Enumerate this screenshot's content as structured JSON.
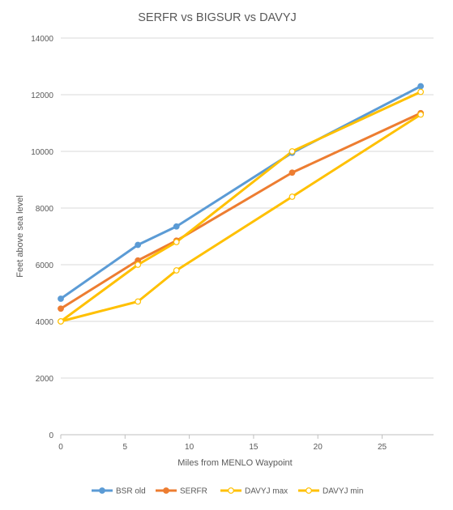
{
  "chart_data": {
    "type": "line",
    "title": "SERFR vs BIGSUR vs DAVYJ",
    "xlabel": "Miles from MENLO Waypoint",
    "ylabel": "Feet above sea level",
    "xlim": [
      0,
      29
    ],
    "ylim": [
      0,
      14000
    ],
    "x_ticks": [
      "0",
      "5",
      "10",
      "15",
      "20",
      "25"
    ],
    "y_ticks": [
      "0",
      "2000",
      "4000",
      "6000",
      "8000",
      "10000",
      "12000",
      "14000"
    ],
    "grid": true,
    "legend_position": "bottom",
    "series": [
      {
        "name": "BSR old",
        "color": "#5b9bd5",
        "marker_fill": "#5b9bd5",
        "x": [
          0,
          6,
          9,
          18,
          28
        ],
        "y": [
          4800,
          6700,
          7350,
          9950,
          12300
        ]
      },
      {
        "name": "SERFR",
        "color": "#ed7d31",
        "marker_fill": "#ed7d31",
        "x": [
          0,
          6,
          9,
          18,
          28
        ],
        "y": [
          4450,
          6150,
          6850,
          9250,
          11350
        ]
      },
      {
        "name": "DAVYJ max",
        "color": "#ffc000",
        "marker_fill": "#ffffff",
        "x": [
          0,
          6,
          9,
          18,
          28
        ],
        "y": [
          4000,
          6000,
          6800,
          10000,
          12100
        ]
      },
      {
        "name": "DAVYJ min",
        "color": "#ffc000",
        "marker_fill": "#ffffff",
        "x": [
          0,
          6,
          9,
          18,
          28
        ],
        "y": [
          4000,
          4700,
          5800,
          8400,
          11300
        ]
      }
    ]
  }
}
